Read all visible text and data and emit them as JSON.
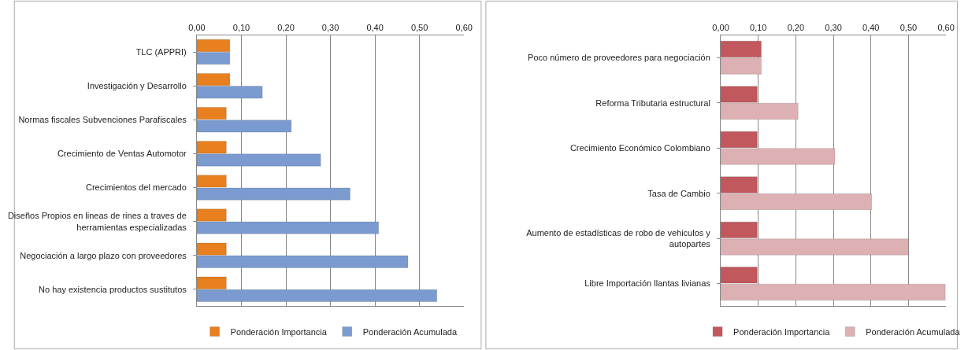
{
  "chart_data": [
    {
      "type": "bar",
      "orientation": "horizontal",
      "categories": [
        "TLC (APPRI)",
        "Investigación y Desarrollo",
        "Normas fiscales Subvenciones Parafiscales",
        "Crecimiento de Ventas Automotor",
        "Crecimientos del mercado",
        "Diseños Propios en lineas de rines a traves de herramientas especializadas",
        "Negociación a largo plazo con proveedores",
        "No hay existencia productos sustitutos"
      ],
      "series": [
        {
          "name": "Ponderación Importancia",
          "color": "#e8801f",
          "values": [
            0.074,
            0.074,
            0.066,
            0.066,
            0.066,
            0.066,
            0.066,
            0.066
          ]
        },
        {
          "name": "Ponderación Acumulada",
          "color": "#7b9bd0",
          "values": [
            0.074,
            0.147,
            0.212,
            0.278,
            0.344,
            0.408,
            0.474,
            0.539
          ]
        }
      ],
      "xlim": [
        0,
        0.6
      ],
      "xticks": [
        {
          "value": 0,
          "label": "0,00"
        },
        {
          "value": 0.1,
          "label": "0,10"
        },
        {
          "value": 0.2,
          "label": "0,20"
        },
        {
          "value": 0.3,
          "label": "0,30"
        },
        {
          "value": 0.4,
          "label": "0,40"
        },
        {
          "value": 0.5,
          "label": "0,50"
        },
        {
          "value": 0.6,
          "label": "0,60"
        }
      ],
      "grid": "x",
      "legend": "bottom"
    },
    {
      "type": "bar",
      "orientation": "horizontal",
      "categories": [
        "Poco número de proveedores para negociación",
        "Reforma Tributaria estructural",
        "Crecimiento Económico Colombiano",
        "Tasa de Cambio",
        "Aumento de estadísticas de robo de vehiculos y autopartes",
        "Libre Importación llantas livianas"
      ],
      "series": [
        {
          "name": "Ponderación Importancia",
          "color": "#c0585d",
          "values": [
            0.108,
            0.097,
            0.097,
            0.097,
            0.097,
            0.097
          ]
        },
        {
          "name": "Ponderación Acumulada",
          "color": "#ddb1b3",
          "values": [
            0.108,
            0.206,
            0.304,
            0.402,
            0.5,
            0.598
          ]
        }
      ],
      "xlim": [
        0,
        0.6
      ],
      "xticks": [
        {
          "value": 0,
          "label": "0,00"
        },
        {
          "value": 0.1,
          "label": "0,10"
        },
        {
          "value": 0.2,
          "label": "0,20"
        },
        {
          "value": 0.3,
          "label": "0,30"
        },
        {
          "value": 0.4,
          "label": "0,40"
        },
        {
          "value": 0.5,
          "label": "0,50"
        },
        {
          "value": 0.6,
          "label": "0,60"
        }
      ],
      "grid": "x",
      "legend": "bottom"
    }
  ]
}
